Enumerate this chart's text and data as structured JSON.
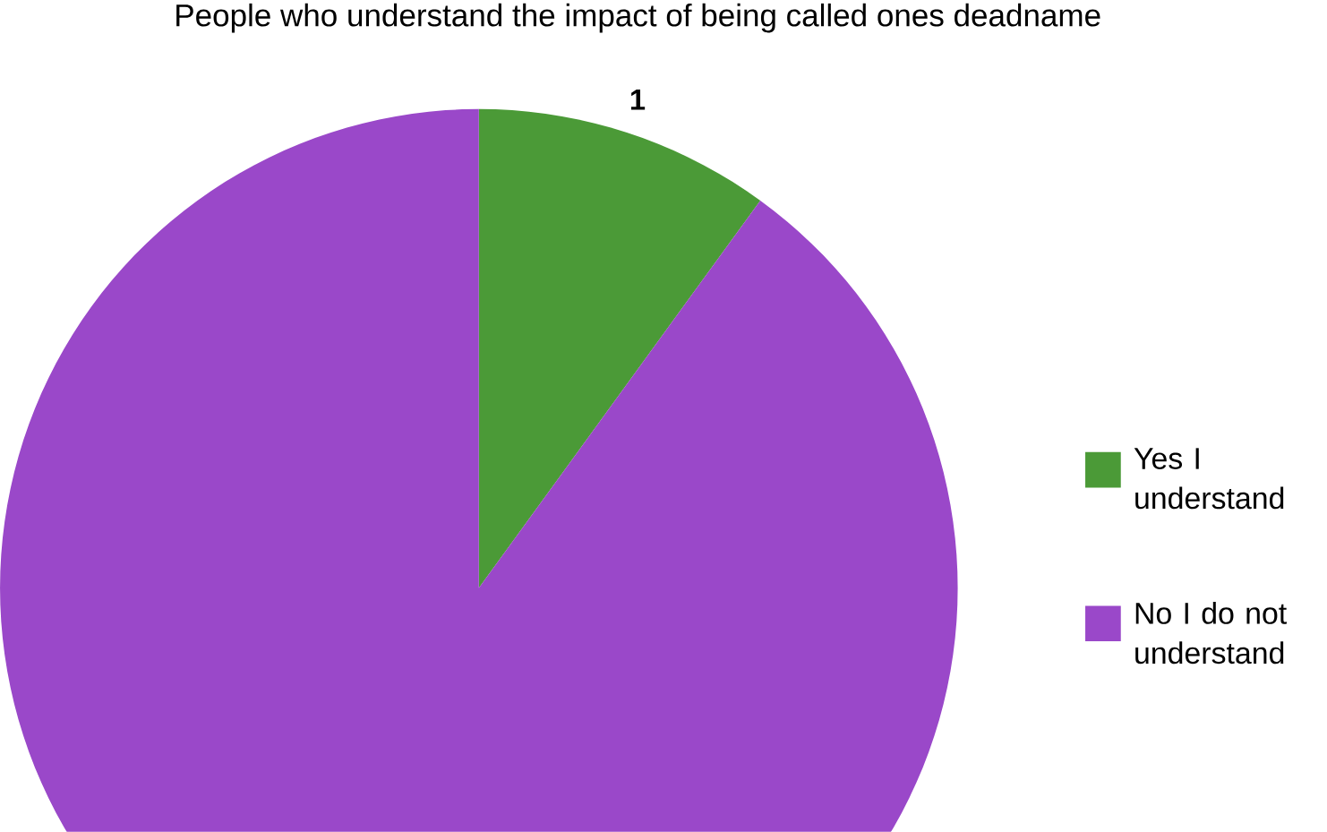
{
  "chart_data": {
    "type": "pie",
    "title": "People who understand the impact of being called ones deadname",
    "categories": [
      "Yes I understand",
      "No I do not understand"
    ],
    "values": [
      1,
      9
    ],
    "colors": [
      "#4b9a37",
      "#9a48c9"
    ],
    "value_labels": [
      "1",
      null
    ],
    "legend": "right"
  }
}
